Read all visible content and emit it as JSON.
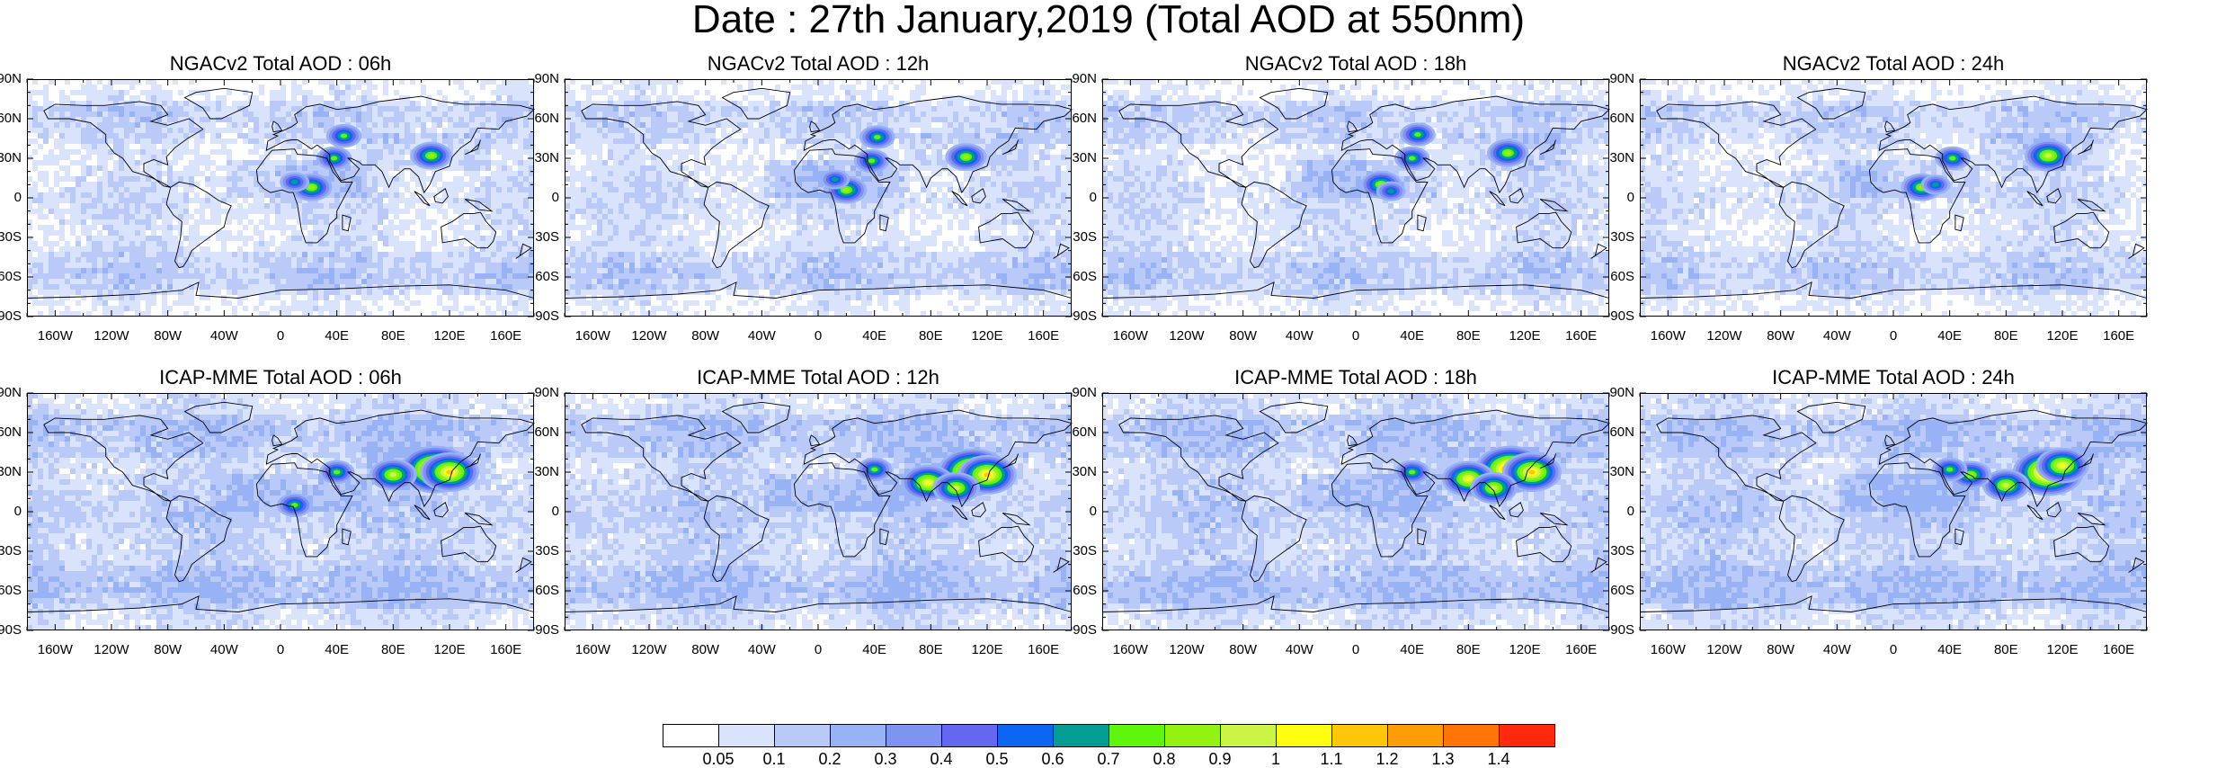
{
  "title": "Date : 27th January,2019 (Total AOD at 550nm)",
  "lat_labels": [
    "90N",
    "60N",
    "30N",
    "0",
    "30S",
    "60S",
    "90S"
  ],
  "lon_labels": [
    "160W",
    "120W",
    "80W",
    "40W",
    "0",
    "40E",
    "80E",
    "120E",
    "160E"
  ],
  "panels": [
    {
      "title": "NGACv2 Total AOD : 06h",
      "model": "NGACv2",
      "hour": "06h",
      "hotspots": [
        {
          "lon": 22,
          "lat": 8,
          "level": 9
        },
        {
          "lon": 38,
          "lat": 30,
          "level": 8
        },
        {
          "lon": 45,
          "lat": 47,
          "level": 8
        },
        {
          "lon": 107,
          "lat": 32,
          "level": 9
        },
        {
          "lon": 10,
          "lat": 12,
          "level": 7
        }
      ]
    },
    {
      "title": "NGACv2 Total AOD : 12h",
      "model": "NGACv2",
      "hour": "12h",
      "hotspots": [
        {
          "lon": 20,
          "lat": 6,
          "level": 9
        },
        {
          "lon": 38,
          "lat": 28,
          "level": 8
        },
        {
          "lon": 42,
          "lat": 46,
          "level": 8
        },
        {
          "lon": 105,
          "lat": 31,
          "level": 9
        },
        {
          "lon": 12,
          "lat": 14,
          "level": 7
        }
      ]
    },
    {
      "title": "NGACv2 Total AOD : 18h",
      "model": "NGACv2",
      "hour": "18h",
      "hotspots": [
        {
          "lon": 18,
          "lat": 10,
          "level": 9
        },
        {
          "lon": 40,
          "lat": 30,
          "level": 8
        },
        {
          "lon": 44,
          "lat": 48,
          "level": 8
        },
        {
          "lon": 108,
          "lat": 34,
          "level": 9
        },
        {
          "lon": 25,
          "lat": 5,
          "level": 7
        }
      ]
    },
    {
      "title": "NGACv2 Total AOD : 24h",
      "model": "NGACv2",
      "hour": "24h",
      "hotspots": [
        {
          "lon": 20,
          "lat": 8,
          "level": 9
        },
        {
          "lon": 42,
          "lat": 30,
          "level": 8
        },
        {
          "lon": 110,
          "lat": 32,
          "level": 10
        },
        {
          "lon": 30,
          "lat": 10,
          "level": 7
        }
      ]
    },
    {
      "title": "ICAP-MME Total AOD : 06h",
      "model": "ICAP-MME",
      "hour": "06h",
      "hotspots": [
        {
          "lon": 110,
          "lat": 32,
          "level": 14
        },
        {
          "lon": 120,
          "lat": 30,
          "level": 12
        },
        {
          "lon": 80,
          "lat": 28,
          "level": 10
        },
        {
          "lon": 40,
          "lat": 30,
          "level": 8
        },
        {
          "lon": 10,
          "lat": 5,
          "level": 8
        }
      ]
    },
    {
      "title": "ICAP-MME Total AOD : 12h",
      "model": "ICAP-MME",
      "hour": "12h",
      "hotspots": [
        {
          "lon": 110,
          "lat": 30,
          "level": 14
        },
        {
          "lon": 120,
          "lat": 28,
          "level": 12
        },
        {
          "lon": 78,
          "lat": 22,
          "level": 11
        },
        {
          "lon": 40,
          "lat": 32,
          "level": 8
        },
        {
          "lon": 98,
          "lat": 18,
          "level": 10
        }
      ]
    },
    {
      "title": "ICAP-MME Total AOD : 18h",
      "model": "ICAP-MME",
      "hour": "18h",
      "hotspots": [
        {
          "lon": 110,
          "lat": 32,
          "level": 14
        },
        {
          "lon": 125,
          "lat": 30,
          "level": 12
        },
        {
          "lon": 80,
          "lat": 25,
          "level": 11
        },
        {
          "lon": 98,
          "lat": 18,
          "level": 10
        },
        {
          "lon": 40,
          "lat": 30,
          "level": 8
        }
      ]
    },
    {
      "title": "ICAP-MME Total AOD : 24h",
      "model": "ICAP-MME",
      "hour": "24h",
      "hotspots": [
        {
          "lon": 110,
          "lat": 30,
          "level": 14
        },
        {
          "lon": 120,
          "lat": 35,
          "level": 11
        },
        {
          "lon": 80,
          "lat": 20,
          "level": 10
        },
        {
          "lon": 55,
          "lat": 28,
          "level": 9
        },
        {
          "lon": 40,
          "lat": 32,
          "level": 8
        }
      ]
    }
  ],
  "colorbar": {
    "labels": [
      "0.05",
      "0.1",
      "0.2",
      "0.3",
      "0.4",
      "0.5",
      "0.6",
      "0.7",
      "0.8",
      "0.9",
      "1",
      "1.1",
      "1.2",
      "1.3",
      "1.4"
    ],
    "colors": [
      "#ffffff",
      "#d9e3fb",
      "#bacaf8",
      "#98b2f6",
      "#7e93f2",
      "#6467f0",
      "#0b66f1",
      "#059c93",
      "#5ff50c",
      "#94f213",
      "#cbf545",
      "#fffe10",
      "#ffc60a",
      "#ff9c07",
      "#ff7505",
      "#ff2a0e"
    ]
  }
}
